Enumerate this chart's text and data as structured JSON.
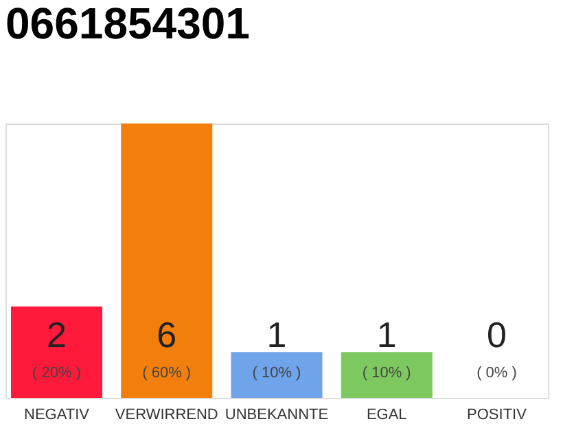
{
  "chart_data": {
    "type": "bar",
    "title": "0661854301",
    "categories": [
      "NEGATIV",
      "VERWIRREND",
      "UNBEKANNTE",
      "EGAL",
      "POSITIV"
    ],
    "values": [
      2,
      6,
      1,
      1,
      0
    ],
    "colors": [
      "#ff1a3c",
      "#f27f0c",
      "#6fa3ea",
      "#7ec95f",
      "#cccccc"
    ],
    "value_labels": [
      "2",
      "6",
      "1",
      "1",
      "0"
    ],
    "annotations": [
      "( 20% )",
      "( 60% )",
      "( 10% )",
      "( 10% )",
      "( 0% )"
    ],
    "grid": false
  }
}
